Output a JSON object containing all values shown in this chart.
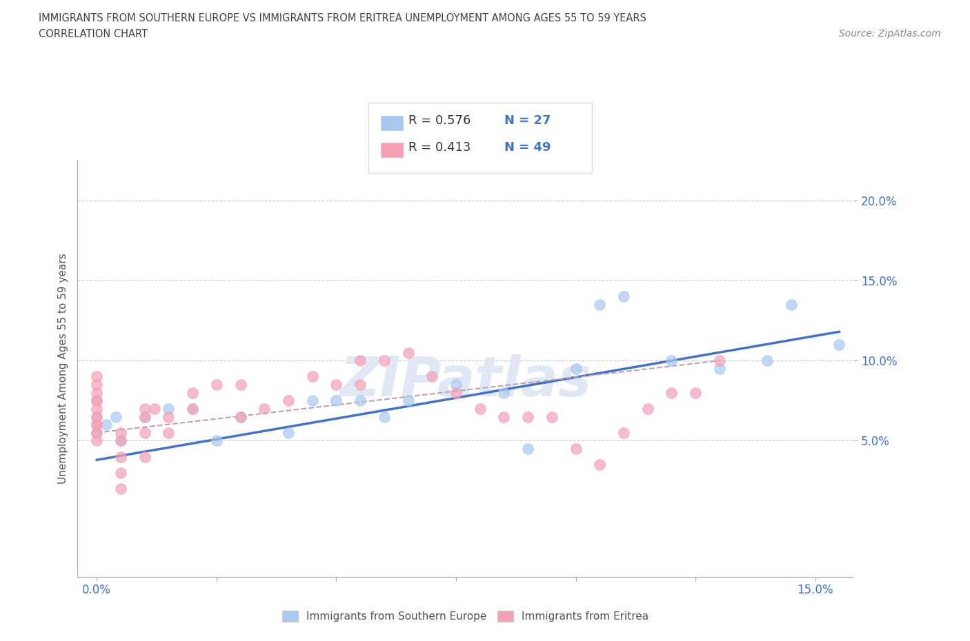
{
  "title_line1": "IMMIGRANTS FROM SOUTHERN EUROPE VS IMMIGRANTS FROM ERITREA UNEMPLOYMENT AMONG AGES 55 TO 59 YEARS",
  "title_line2": "CORRELATION CHART",
  "source_text": "Source: ZipAtlas.com",
  "ylabel": "Unemployment Among Ages 55 to 59 years",
  "xlim": [
    -0.004,
    0.158
  ],
  "ylim": [
    -0.035,
    0.225
  ],
  "blue_color": "#a8c8f0",
  "pink_color": "#f4a0b5",
  "blue_line_color": "#4472c4",
  "pink_line_color": "#e06080",
  "watermark": "ZIPatlas",
  "legend_r_blue": "R = 0.576",
  "legend_n_blue": "N = 27",
  "legend_r_pink": "R = 0.413",
  "legend_n_pink": "N = 49",
  "legend_label_blue": "Immigrants from Southern Europe",
  "legend_label_pink": "Immigrants from Eritrea",
  "blue_scatter_x": [
    0.0,
    0.0,
    0.002,
    0.004,
    0.005,
    0.01,
    0.015,
    0.02,
    0.025,
    0.03,
    0.04,
    0.045,
    0.05,
    0.055,
    0.06,
    0.065,
    0.075,
    0.085,
    0.09,
    0.1,
    0.105,
    0.11,
    0.12,
    0.13,
    0.14,
    0.145,
    0.155
  ],
  "blue_scatter_y": [
    0.055,
    0.065,
    0.06,
    0.065,
    0.05,
    0.065,
    0.07,
    0.07,
    0.05,
    0.065,
    0.055,
    0.075,
    0.075,
    0.075,
    0.065,
    0.075,
    0.085,
    0.08,
    0.045,
    0.095,
    0.135,
    0.14,
    0.1,
    0.095,
    0.1,
    0.135,
    0.11
  ],
  "pink_scatter_x": [
    0.0,
    0.0,
    0.0,
    0.0,
    0.0,
    0.0,
    0.0,
    0.0,
    0.0,
    0.0,
    0.0,
    0.005,
    0.005,
    0.005,
    0.005,
    0.005,
    0.01,
    0.01,
    0.01,
    0.01,
    0.012,
    0.015,
    0.015,
    0.02,
    0.02,
    0.025,
    0.03,
    0.03,
    0.035,
    0.04,
    0.045,
    0.05,
    0.055,
    0.055,
    0.06,
    0.065,
    0.07,
    0.075,
    0.08,
    0.085,
    0.09,
    0.095,
    0.1,
    0.105,
    0.11,
    0.115,
    0.12,
    0.125,
    0.13
  ],
  "pink_scatter_y": [
    0.06,
    0.065,
    0.07,
    0.075,
    0.075,
    0.08,
    0.085,
    0.09,
    0.05,
    0.055,
    0.06,
    0.02,
    0.03,
    0.04,
    0.05,
    0.055,
    0.04,
    0.055,
    0.065,
    0.07,
    0.07,
    0.055,
    0.065,
    0.07,
    0.08,
    0.085,
    0.065,
    0.085,
    0.07,
    0.075,
    0.09,
    0.085,
    0.085,
    0.1,
    0.1,
    0.105,
    0.09,
    0.08,
    0.07,
    0.065,
    0.065,
    0.065,
    0.045,
    0.035,
    0.055,
    0.07,
    0.08,
    0.08,
    0.1
  ],
  "blue_trend_x": [
    0.0,
    0.155
  ],
  "blue_trend_y": [
    0.038,
    0.118
  ],
  "pink_trend_x": [
    0.0,
    0.13
  ],
  "pink_trend_y": [
    0.055,
    0.1
  ]
}
